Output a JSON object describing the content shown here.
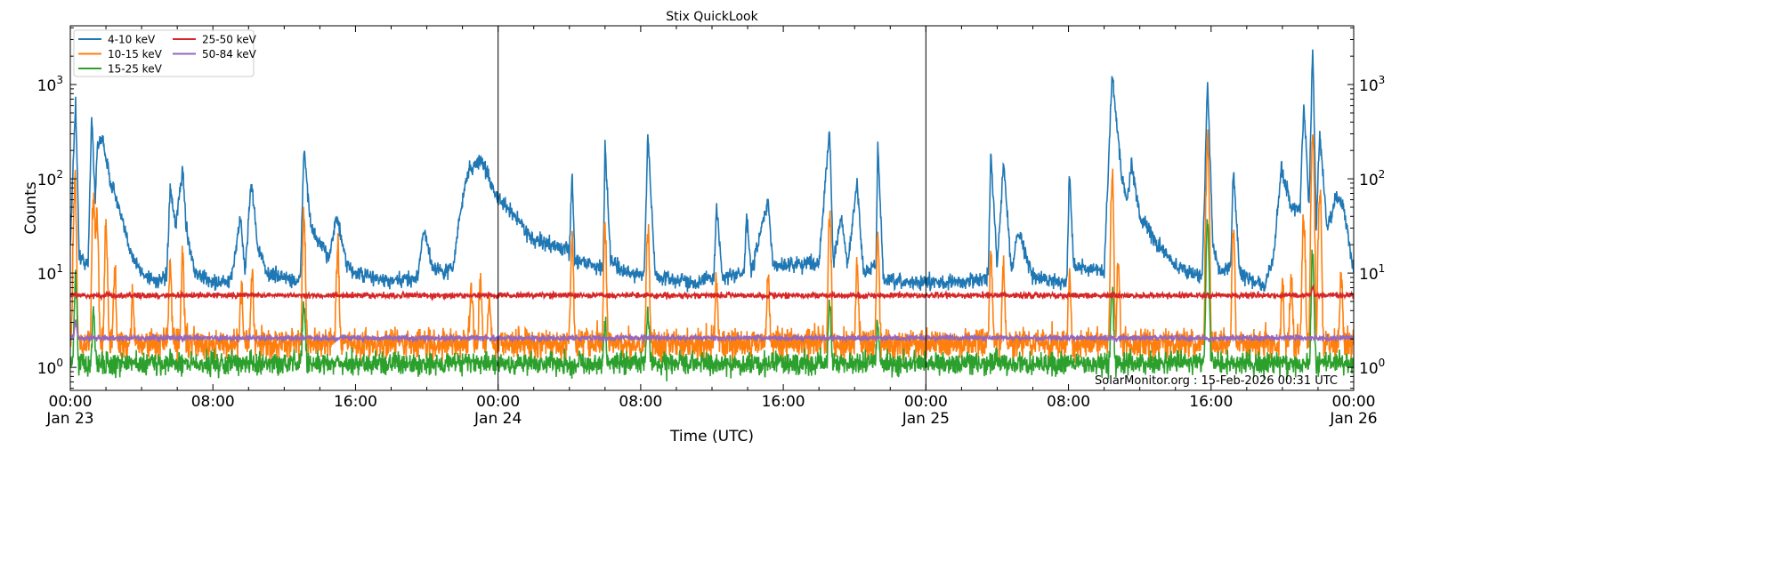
{
  "chart_data": {
    "type": "line",
    "title": "Stix QuickLook",
    "xlabel": "Time (UTC)",
    "ylabel": "Counts",
    "yscale": "log",
    "ylim": [
      0.57,
      4200
    ],
    "xlim_hours_from_start": [
      0,
      72
    ],
    "xticks": [
      {
        "h": 0,
        "time": "00:00",
        "date": "Jan 23"
      },
      {
        "h": 8,
        "time": "08:00",
        "date": ""
      },
      {
        "h": 16,
        "time": "16:00",
        "date": ""
      },
      {
        "h": 24,
        "time": "00:00",
        "date": "Jan 24"
      },
      {
        "h": 32,
        "time": "08:00",
        "date": ""
      },
      {
        "h": 40,
        "time": "16:00",
        "date": ""
      },
      {
        "h": 48,
        "time": "00:00",
        "date": "Jan 25"
      },
      {
        "h": 56,
        "time": "08:00",
        "date": ""
      },
      {
        "h": 64,
        "time": "16:00",
        "date": ""
      },
      {
        "h": 72,
        "time": "00:00",
        "date": "Jan 26"
      }
    ],
    "yticks": [
      {
        "base": "10",
        "exp": "0",
        "v": 1
      },
      {
        "base": "10",
        "exp": "1",
        "v": 10
      },
      {
        "base": "10",
        "exp": "2",
        "v": 100
      },
      {
        "base": "10",
        "exp": "3",
        "v": 1000
      }
    ],
    "day_boundaries_hours": [
      24,
      48
    ],
    "legend_position": "top-left",
    "annotation": "SolarMonitor.org : 15-Feb-2026 00:31 UTC",
    "series": [
      {
        "name": "4-10 keV",
        "color": "#1f77b4",
        "noise": 0.04,
        "points": [
          [
            0,
            20
          ],
          [
            0.3,
            700
          ],
          [
            0.5,
            15
          ],
          [
            1,
            12
          ],
          [
            1.2,
            500
          ],
          [
            1.4,
            60
          ],
          [
            1.5,
            200
          ],
          [
            1.8,
            280
          ],
          [
            2.2,
            100
          ],
          [
            2.5,
            70
          ],
          [
            3,
            30
          ],
          [
            3.5,
            15
          ],
          [
            4,
            10
          ],
          [
            5,
            8
          ],
          [
            5.4,
            9
          ],
          [
            5.6,
            80
          ],
          [
            5.9,
            30
          ],
          [
            6.3,
            130
          ],
          [
            6.5,
            30
          ],
          [
            7,
            10
          ],
          [
            8,
            8
          ],
          [
            9,
            8
          ],
          [
            9.55,
            40
          ],
          [
            9.8,
            10
          ],
          [
            10.15,
            100
          ],
          [
            10.5,
            20
          ],
          [
            11,
            10
          ],
          [
            12,
            9
          ],
          [
            12.9,
            8
          ],
          [
            13.1,
            220
          ],
          [
            13.5,
            30
          ],
          [
            14,
            20
          ],
          [
            14.5,
            15
          ],
          [
            14.95,
            40
          ],
          [
            15.5,
            12
          ],
          [
            16,
            10
          ],
          [
            18,
            8
          ],
          [
            19.5,
            9
          ],
          [
            19.8,
            30
          ],
          [
            20.3,
            12
          ],
          [
            21,
            10
          ],
          [
            21.5,
            12
          ],
          [
            21.8,
            35
          ],
          [
            22.3,
            120
          ],
          [
            23.05,
            160
          ],
          [
            23.5,
            100
          ],
          [
            24,
            60
          ],
          [
            25,
            40
          ],
          [
            26,
            22
          ],
          [
            27,
            20
          ],
          [
            28,
            17
          ],
          [
            28.15,
            120
          ],
          [
            28.3,
            14
          ],
          [
            29,
            13
          ],
          [
            29.9,
            11
          ],
          [
            30,
            250
          ],
          [
            30.3,
            15
          ],
          [
            31,
            10
          ],
          [
            32.2,
            10
          ],
          [
            32.4,
            300
          ],
          [
            32.8,
            10
          ],
          [
            33,
            9
          ],
          [
            35,
            8
          ],
          [
            36.1,
            9
          ],
          [
            36.25,
            50
          ],
          [
            36.6,
            9
          ],
          [
            37.8,
            10
          ],
          [
            37.95,
            40
          ],
          [
            38.2,
            10
          ],
          [
            39.15,
            60
          ],
          [
            39.4,
            12
          ],
          [
            42,
            13
          ],
          [
            42.6,
            350
          ],
          [
            42.8,
            12
          ],
          [
            43.25,
            40
          ],
          [
            43.6,
            12
          ],
          [
            44.15,
            90
          ],
          [
            44.5,
            10
          ],
          [
            45.2,
            12
          ],
          [
            45.3,
            250
          ],
          [
            45.6,
            9
          ],
          [
            46,
            8
          ],
          [
            50,
            8
          ],
          [
            51.5,
            9
          ],
          [
            51.65,
            200
          ],
          [
            52,
            12
          ],
          [
            52.35,
            150
          ],
          [
            52.8,
            10
          ],
          [
            53.15,
            30
          ],
          [
            54,
            9
          ],
          [
            55.9,
            8
          ],
          [
            56.05,
            120
          ],
          [
            56.3,
            12
          ],
          [
            58,
            10
          ],
          [
            58.45,
            1300
          ],
          [
            59,
            100
          ],
          [
            59.3,
            60
          ],
          [
            59.55,
            150
          ],
          [
            60,
            40
          ],
          [
            61,
            20
          ],
          [
            62,
            12
          ],
          [
            63.5,
            9
          ],
          [
            63.8,
            1100
          ],
          [
            64.1,
            20
          ],
          [
            64.5,
            10
          ],
          [
            65.1,
            12
          ],
          [
            65.25,
            140
          ],
          [
            65.6,
            10
          ],
          [
            67,
            7
          ],
          [
            67.5,
            15
          ],
          [
            67.95,
            130
          ],
          [
            68.5,
            50
          ],
          [
            69,
            50
          ],
          [
            69.2,
            600
          ],
          [
            69.5,
            50
          ],
          [
            69.7,
            2700
          ],
          [
            69.9,
            30
          ],
          [
            70.1,
            300
          ],
          [
            70.5,
            30
          ],
          [
            71,
            60
          ],
          [
            71.35,
            60
          ],
          [
            72,
            10
          ]
        ]
      },
      {
        "name": "10-15 keV",
        "color": "#ff7f0e",
        "baseline": 1.8,
        "noise": 0.08,
        "peaks": [
          [
            0.25,
            90
          ],
          [
            1.3,
            60
          ],
          [
            1.5,
            40
          ],
          [
            2,
            30
          ],
          [
            2.5,
            8
          ],
          [
            3.5,
            4
          ],
          [
            5.6,
            10
          ],
          [
            6.3,
            15
          ],
          [
            9.6,
            5
          ],
          [
            10.2,
            8
          ],
          [
            13.1,
            40
          ],
          [
            15,
            15
          ],
          [
            22.5,
            6
          ],
          [
            23,
            6
          ],
          [
            23.5,
            4
          ],
          [
            28.15,
            20
          ],
          [
            30,
            25
          ],
          [
            32.4,
            30
          ],
          [
            36.25,
            6
          ],
          [
            39.15,
            8
          ],
          [
            42.6,
            40
          ],
          [
            44.15,
            10
          ],
          [
            45.3,
            22
          ],
          [
            51.65,
            12
          ],
          [
            52.35,
            10
          ],
          [
            56.05,
            8
          ],
          [
            58.45,
            100
          ],
          [
            58.8,
            10
          ],
          [
            63.8,
            250
          ],
          [
            65.25,
            25
          ],
          [
            68,
            6
          ],
          [
            68.5,
            8
          ],
          [
            69.2,
            40
          ],
          [
            69.7,
            300
          ],
          [
            70.1,
            80
          ],
          [
            71.3,
            8
          ]
        ]
      },
      {
        "name": "15-25 keV",
        "color": "#2ca02c",
        "baseline": 1.1,
        "noise": 0.06,
        "peaks": [
          [
            0.3,
            8
          ],
          [
            1.3,
            3
          ],
          [
            13.1,
            4
          ],
          [
            30,
            2
          ],
          [
            32.4,
            3
          ],
          [
            42.6,
            4
          ],
          [
            45.3,
            2
          ],
          [
            58.45,
            6
          ],
          [
            63.8,
            35
          ],
          [
            69.7,
            15
          ]
        ]
      },
      {
        "name": "25-50 keV",
        "color": "#d62728",
        "baseline": 5.8,
        "noise": 0.015,
        "peaks": [
          [
            69.7,
            1.5
          ]
        ]
      },
      {
        "name": "50-84 keV",
        "color": "#9467bd",
        "baseline": 2.05,
        "noise": 0.015,
        "peaks": [
          [
            0.3,
            1
          ]
        ]
      }
    ]
  }
}
